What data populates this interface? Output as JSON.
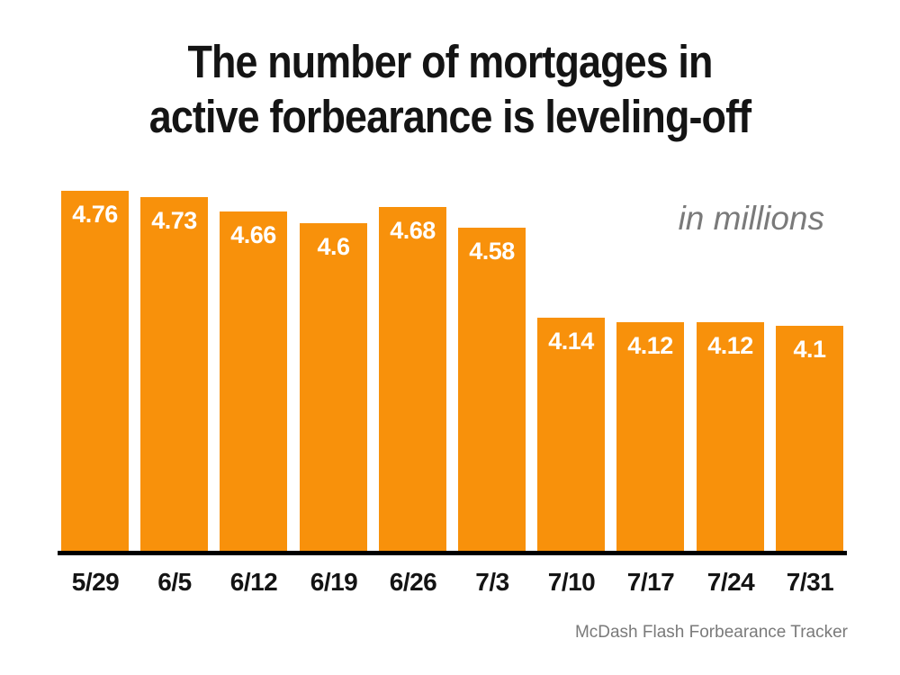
{
  "title": {
    "line1": "The number of mortgages in",
    "line2": "active forbearance is leveling-off"
  },
  "annotation": {
    "text": "in millions"
  },
  "source": {
    "text": "McDash Flash Forbearance Tracker"
  },
  "colors": {
    "bar": "#f8910b",
    "bar_label": "#ffffff",
    "title": "#141414",
    "muted_gray": "#7a7a7a",
    "axis": "#000000",
    "background": "#ffffff"
  },
  "chart_data": {
    "type": "bar",
    "title": "The number of mortgages in active forbearance is leveling-off",
    "categories": [
      "5/29",
      "6/5",
      "6/12",
      "6/19",
      "6/26",
      "7/3",
      "7/10",
      "7/17",
      "7/24",
      "7/31"
    ],
    "values": [
      4.76,
      4.73,
      4.66,
      4.6,
      4.68,
      4.58,
      4.14,
      4.12,
      4.12,
      4.1
    ],
    "value_labels": [
      "4.76",
      "4.73",
      "4.66",
      "4.6",
      "4.68",
      "4.58",
      "4.14",
      "4.12",
      "4.12",
      "4.1"
    ],
    "unit_note": "in millions",
    "xlabel": "",
    "ylabel": "",
    "ylim": [
      3.0,
      5.0
    ],
    "grid": false,
    "legend_position": "none",
    "value_labels_position": "inside-top",
    "source": "McDash Flash Forbearance Tracker"
  }
}
